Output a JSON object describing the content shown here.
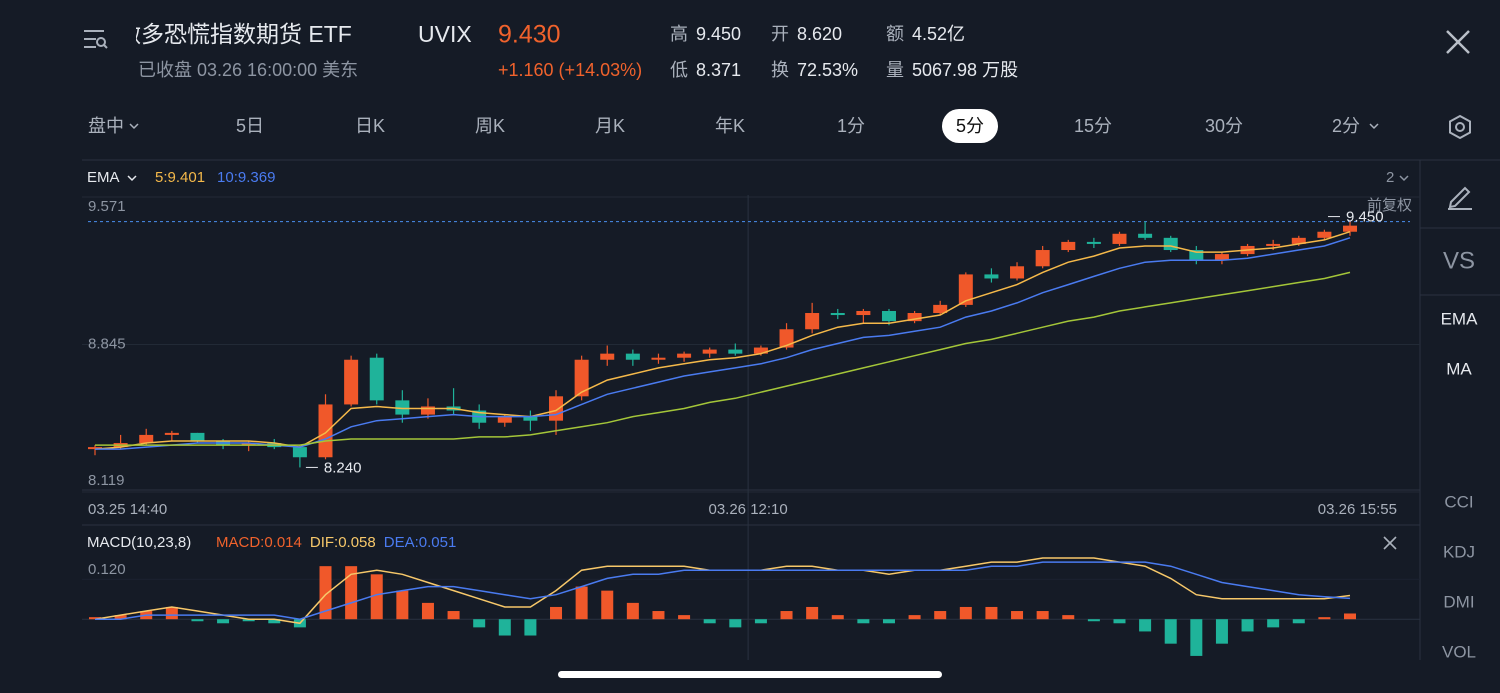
{
  "header": {
    "name": "做多恐慌指数期货 ETF",
    "symbol": "UVIX",
    "price": "9.430",
    "status": "已收盘 03.26 16:00:00 美东",
    "change": "+1.160 (+14.03%)",
    "stats": [
      {
        "label": "高",
        "value": "9.450"
      },
      {
        "label": "开",
        "value": "8.620"
      },
      {
        "label": "额",
        "value": "4.52亿"
      },
      {
        "label": "低",
        "value": "8.371"
      },
      {
        "label": "换",
        "value": "72.53%"
      },
      {
        "label": "量",
        "value": "5067.98 万股"
      }
    ]
  },
  "tabs": [
    "盘中",
    "5日",
    "日K",
    "周K",
    "月K",
    "年K",
    "1分",
    "5分",
    "15分",
    "30分",
    "2分"
  ],
  "active_tab": 7,
  "sidebar": [
    "VS",
    "EMA",
    "MA",
    "CCI",
    "KDJ",
    "DMI",
    "VOL"
  ],
  "chart_data": [
    {
      "type": "candlestick",
      "indicator": "EMA",
      "period_count": "2",
      "adjust": "前复权",
      "up_color": "#f0582a",
      "down_color": "#1fb39a",
      "grid": true,
      "xlim": [
        0,
        49
      ],
      "xticks": [
        {
          "value": 0,
          "label": "03.25 14:40"
        },
        {
          "value": 25.5,
          "label": "03.26 12:10"
        },
        {
          "value": 49,
          "label": "03.26 15:55"
        }
      ],
      "ylim": [
        8.119,
        9.571
      ],
      "yticks": [
        9.571,
        8.845,
        8.119
      ],
      "high_marker": {
        "x": 49,
        "value": 9.45,
        "label": "9.450"
      },
      "low_marker": {
        "x": 8,
        "value": 8.24,
        "label": "8.240"
      },
      "candles": [
        [
          8.33,
          8.35,
          8.3,
          8.34
        ],
        [
          8.34,
          8.4,
          8.33,
          8.36
        ],
        [
          8.36,
          8.43,
          8.35,
          8.4
        ],
        [
          8.4,
          8.42,
          8.37,
          8.41
        ],
        [
          8.41,
          8.41,
          8.36,
          8.37
        ],
        [
          8.37,
          8.38,
          8.33,
          8.35
        ],
        [
          8.35,
          8.37,
          8.32,
          8.36
        ],
        [
          8.36,
          8.38,
          8.33,
          8.34
        ],
        [
          8.34,
          8.35,
          8.24,
          8.29
        ],
        [
          8.29,
          8.6,
          8.28,
          8.55
        ],
        [
          8.55,
          8.79,
          8.54,
          8.77
        ],
        [
          8.78,
          8.8,
          8.55,
          8.57
        ],
        [
          8.57,
          8.62,
          8.46,
          8.5
        ],
        [
          8.5,
          8.58,
          8.48,
          8.54
        ],
        [
          8.54,
          8.63,
          8.5,
          8.52
        ],
        [
          8.52,
          8.55,
          8.43,
          8.46
        ],
        [
          8.46,
          8.5,
          8.44,
          8.49
        ],
        [
          8.49,
          8.52,
          8.42,
          8.47
        ],
        [
          8.47,
          8.62,
          8.4,
          8.59
        ],
        [
          8.59,
          8.79,
          8.57,
          8.77
        ],
        [
          8.77,
          8.84,
          8.74,
          8.8
        ],
        [
          8.8,
          8.82,
          8.74,
          8.77
        ],
        [
          8.77,
          8.8,
          8.75,
          8.78
        ],
        [
          8.78,
          8.81,
          8.76,
          8.8
        ],
        [
          8.8,
          8.83,
          8.78,
          8.82
        ],
        [
          8.82,
          8.85,
          8.79,
          8.8
        ],
        [
          8.8,
          8.84,
          8.79,
          8.83
        ],
        [
          8.83,
          8.95,
          8.82,
          8.92
        ],
        [
          8.92,
          9.05,
          8.9,
          9.0
        ],
        [
          9.0,
          9.02,
          8.97,
          8.99
        ],
        [
          8.99,
          9.02,
          8.95,
          9.01
        ],
        [
          9.01,
          9.02,
          8.94,
          8.96
        ],
        [
          8.96,
          9.01,
          8.95,
          9.0
        ],
        [
          9.0,
          9.06,
          8.99,
          9.04
        ],
        [
          9.04,
          9.2,
          9.03,
          9.19
        ],
        [
          9.19,
          9.22,
          9.15,
          9.17
        ],
        [
          9.17,
          9.25,
          9.16,
          9.23
        ],
        [
          9.23,
          9.33,
          9.22,
          9.31
        ],
        [
          9.31,
          9.36,
          9.3,
          9.35
        ],
        [
          9.35,
          9.37,
          9.32,
          9.34
        ],
        [
          9.34,
          9.4,
          9.33,
          9.39
        ],
        [
          9.39,
          9.45,
          9.36,
          9.37
        ],
        [
          9.37,
          9.38,
          9.3,
          9.31
        ],
        [
          9.31,
          9.33,
          9.24,
          9.26
        ],
        [
          9.26,
          9.3,
          9.24,
          9.29
        ],
        [
          9.29,
          9.34,
          9.28,
          9.33
        ],
        [
          9.33,
          9.36,
          9.31,
          9.34
        ],
        [
          9.34,
          9.38,
          9.33,
          9.37
        ],
        [
          9.37,
          9.41,
          9.36,
          9.4
        ],
        [
          9.4,
          9.45,
          9.38,
          9.43
        ]
      ],
      "series": [
        {
          "name": "5:9.401",
          "color": "#f5b94a",
          "values": [
            8.33,
            8.34,
            8.36,
            8.37,
            8.37,
            8.37,
            8.37,
            8.36,
            8.34,
            8.41,
            8.53,
            8.54,
            8.53,
            8.53,
            8.53,
            8.51,
            8.5,
            8.49,
            8.52,
            8.61,
            8.67,
            8.7,
            8.73,
            8.75,
            8.77,
            8.78,
            8.8,
            8.84,
            8.89,
            8.93,
            8.95,
            8.95,
            8.97,
            8.99,
            9.06,
            9.1,
            9.14,
            9.2,
            9.25,
            9.28,
            9.32,
            9.33,
            9.33,
            9.3,
            9.3,
            9.31,
            9.32,
            9.34,
            9.36,
            9.4
          ]
        },
        {
          "name": "10:9.369",
          "color": "#4a7bf0",
          "values": [
            8.33,
            8.33,
            8.34,
            8.35,
            8.36,
            8.36,
            8.36,
            8.35,
            8.34,
            8.38,
            8.44,
            8.47,
            8.48,
            8.49,
            8.5,
            8.49,
            8.49,
            8.49,
            8.5,
            8.55,
            8.6,
            8.63,
            8.66,
            8.69,
            8.71,
            8.73,
            8.75,
            8.78,
            8.82,
            8.85,
            8.88,
            8.89,
            8.91,
            8.93,
            8.98,
            9.01,
            9.05,
            9.1,
            9.14,
            9.18,
            9.22,
            9.25,
            9.26,
            9.26,
            9.26,
            9.27,
            9.29,
            9.31,
            9.33,
            9.37
          ]
        },
        {
          "color": "#a4c639",
          "values": [
            8.35,
            8.35,
            8.35,
            8.35,
            8.35,
            8.35,
            8.35,
            8.35,
            8.35,
            8.37,
            8.38,
            8.38,
            8.38,
            8.38,
            8.38,
            8.39,
            8.39,
            8.4,
            8.42,
            8.44,
            8.46,
            8.49,
            8.51,
            8.53,
            8.56,
            8.58,
            8.61,
            8.64,
            8.67,
            8.7,
            8.73,
            8.76,
            8.79,
            8.82,
            8.85,
            8.87,
            8.9,
            8.93,
            8.96,
            8.98,
            9.01,
            9.03,
            9.05,
            9.07,
            9.09,
            9.11,
            9.13,
            9.15,
            9.17,
            9.2
          ]
        }
      ]
    },
    {
      "type": "macd",
      "title": "MACD(10,23,8)",
      "up_color": "#f0582a",
      "down_color": "#1fb39a",
      "xlim": [
        0,
        49
      ],
      "ylim": [
        -0.1,
        0.15
      ],
      "yticks": [
        {
          "value": 0.12,
          "label": "0.120"
        }
      ],
      "series": [
        {
          "name": "MACD:0.014",
          "color": "#f0622c",
          "values": [
            0.005,
            0.01,
            0.02,
            0.03,
            -0.005,
            -0.01,
            -0.005,
            -0.01,
            -0.02,
            0.13,
            0.13,
            0.11,
            0.07,
            0.04,
            0.02,
            -0.02,
            -0.04,
            -0.04,
            0.03,
            0.08,
            0.07,
            0.04,
            0.02,
            0.01,
            -0.01,
            -0.02,
            -0.01,
            0.02,
            0.03,
            0.01,
            -0.01,
            -0.01,
            0.01,
            0.02,
            0.03,
            0.03,
            0.02,
            0.02,
            0.01,
            -0.005,
            -0.01,
            -0.03,
            -0.06,
            -0.09,
            -0.06,
            -0.03,
            -0.02,
            -0.01,
            0.005,
            0.014
          ]
        },
        {
          "name": "DIF:0.058",
          "color": "#f7c86a",
          "values": [
            0.0,
            0.01,
            0.02,
            0.03,
            0.02,
            0.01,
            0.0,
            0.0,
            -0.01,
            0.06,
            0.11,
            0.12,
            0.11,
            0.09,
            0.07,
            0.05,
            0.03,
            0.03,
            0.07,
            0.12,
            0.13,
            0.13,
            0.13,
            0.13,
            0.12,
            0.12,
            0.12,
            0.13,
            0.13,
            0.12,
            0.12,
            0.11,
            0.12,
            0.12,
            0.13,
            0.14,
            0.14,
            0.15,
            0.15,
            0.15,
            0.14,
            0.13,
            0.1,
            0.06,
            0.05,
            0.05,
            0.05,
            0.05,
            0.05,
            0.058
          ]
        },
        {
          "name": "DEA:0.051",
          "color": "#4a7bf0",
          "values": [
            0.0,
            0.0,
            0.01,
            0.01,
            0.01,
            0.01,
            0.01,
            0.01,
            0.0,
            0.02,
            0.04,
            0.06,
            0.07,
            0.08,
            0.08,
            0.07,
            0.06,
            0.05,
            0.06,
            0.08,
            0.1,
            0.11,
            0.11,
            0.12,
            0.12,
            0.12,
            0.12,
            0.12,
            0.12,
            0.12,
            0.12,
            0.12,
            0.12,
            0.12,
            0.12,
            0.13,
            0.13,
            0.14,
            0.14,
            0.14,
            0.14,
            0.14,
            0.13,
            0.11,
            0.09,
            0.08,
            0.07,
            0.06,
            0.055,
            0.051
          ]
        }
      ]
    }
  ]
}
